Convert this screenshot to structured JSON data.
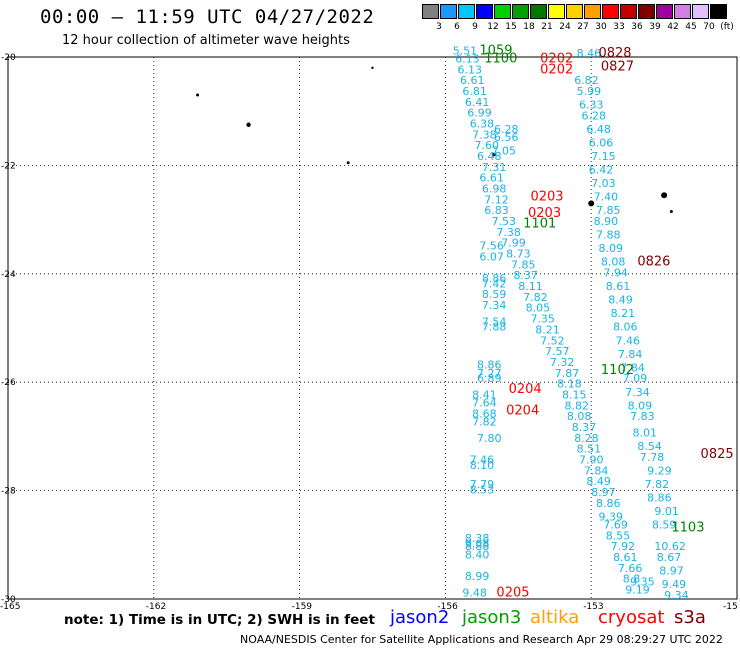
{
  "title": "00:00 – 11:59 UTC 04/27/2022",
  "subtitle": "12 hour collection of altimeter wave heights",
  "legend": {
    "labels": [
      "3",
      "6",
      "9",
      "12",
      "15",
      "18",
      "21",
      "24",
      "27",
      "30",
      "33",
      "36",
      "39",
      "42",
      "45",
      "70",
      "(ft)"
    ],
    "colors": [
      "#808080",
      "#1e96ff",
      "#00c8ff",
      "#0000ff",
      "#00d000",
      "#00a000",
      "#007800",
      "#ffff00",
      "#ffd000",
      "#ffa000",
      "#ff0000",
      "#c00000",
      "#800000",
      "#a000a0",
      "#d080e0",
      "#e0c0ff",
      "#000000"
    ]
  },
  "axes": {
    "lat_labels": [
      "-20",
      "-22",
      "-24",
      "-26",
      "-28",
      "-30"
    ],
    "lon_labels": [
      "-165",
      "-162",
      "-159",
      "-156",
      "-153",
      "-15"
    ]
  },
  "track_values": [
    {
      "t": "5.51",
      "lon": -155.85,
      "lat": -19.95
    },
    {
      "t": "6.13",
      "lon": -155.8,
      "lat": -20.1
    },
    {
      "t": "6.13",
      "lon": -155.75,
      "lat": -20.3
    },
    {
      "t": "6.61",
      "lon": -155.7,
      "lat": -20.5
    },
    {
      "t": "6.81",
      "lon": -155.65,
      "lat": -20.7
    },
    {
      "t": "6.41",
      "lon": -155.6,
      "lat": -20.9
    },
    {
      "t": "6.99",
      "lon": -155.55,
      "lat": -21.1
    },
    {
      "t": "6.38",
      "lon": -155.5,
      "lat": -21.3
    },
    {
      "t": "7.38",
      "lon": -155.45,
      "lat": -21.5
    },
    {
      "t": "7.60",
      "lon": -155.4,
      "lat": -21.7
    },
    {
      "t": "6.48",
      "lon": -155.35,
      "lat": -21.9
    },
    {
      "t": "7.31",
      "lon": -155.25,
      "lat": -22.1
    },
    {
      "t": "6.61",
      "lon": -155.3,
      "lat": -22.3
    },
    {
      "t": "6.98",
      "lon": -155.25,
      "lat": -22.5
    },
    {
      "t": "7.12",
      "lon": -155.2,
      "lat": -22.7
    },
    {
      "t": "6.83",
      "lon": -155.2,
      "lat": -22.9
    },
    {
      "t": "7.53",
      "lon": -155.05,
      "lat": -23.1
    },
    {
      "t": "7.38",
      "lon": -154.95,
      "lat": -23.3
    },
    {
      "t": "7.56",
      "lon": -155.3,
      "lat": -23.55
    },
    {
      "t": "6.07",
      "lon": -155.3,
      "lat": -23.75
    },
    {
      "t": "6.28",
      "lon": -155.0,
      "lat": -21.4
    },
    {
      "t": "6.56",
      "lon": -155.0,
      "lat": -21.55
    },
    {
      "t": "7.05",
      "lon": -155.05,
      "lat": -21.8
    },
    {
      "t": "7.99",
      "lon": -154.85,
      "lat": -23.5
    },
    {
      "t": "8.73",
      "lon": -154.75,
      "lat": -23.7
    },
    {
      "t": "7.85",
      "lon": -154.65,
      "lat": -23.9
    },
    {
      "t": "8.37",
      "lon": -154.6,
      "lat": -24.1
    },
    {
      "t": "8.11",
      "lon": -154.5,
      "lat": -24.3
    },
    {
      "t": "7.82",
      "lon": -154.4,
      "lat": -24.5
    },
    {
      "t": "8.05",
      "lon": -154.35,
      "lat": -24.7
    },
    {
      "t": "7.35",
      "lon": -154.25,
      "lat": -24.9
    },
    {
      "t": "8.21",
      "lon": -154.15,
      "lat": -25.1
    },
    {
      "t": "7.52",
      "lon": -154.05,
      "lat": -25.3
    },
    {
      "t": "7.57",
      "lon": -153.95,
      "lat": -25.5
    },
    {
      "t": "7.32",
      "lon": -153.85,
      "lat": -25.7
    },
    {
      "t": "7.87",
      "lon": -153.75,
      "lat": -25.9
    },
    {
      "t": "8.18",
      "lon": -153.7,
      "lat": -26.1
    },
    {
      "t": "8.15",
      "lon": -153.6,
      "lat": -26.3
    },
    {
      "t": "8.82",
      "lon": -153.55,
      "lat": -26.5
    },
    {
      "t": "8.08",
      "lon": -153.5,
      "lat": -26.7
    },
    {
      "t": "8.37",
      "lon": -153.4,
      "lat": -26.9
    },
    {
      "t": "8.28",
      "lon": -153.35,
      "lat": -27.1
    },
    {
      "t": "8.51",
      "lon": -153.3,
      "lat": -27.3
    },
    {
      "t": "7.90",
      "lon": -153.25,
      "lat": -27.5
    },
    {
      "t": "7.84",
      "lon": -153.15,
      "lat": -27.7
    },
    {
      "t": "8.49",
      "lon": -153.1,
      "lat": -27.9
    },
    {
      "t": "8.97",
      "lon": -153.0,
      "lat": -28.1
    },
    {
      "t": "8.86",
      "lon": -152.9,
      "lat": -28.3
    },
    {
      "t": "7.69",
      "lon": -152.75,
      "lat": -28.7
    },
    {
      "t": "8.55",
      "lon": -152.7,
      "lat": -28.9
    },
    {
      "t": "7.92",
      "lon": -152.6,
      "lat": -29.1
    },
    {
      "t": "8.61",
      "lon": -152.55,
      "lat": -29.3
    },
    {
      "t": "7.66",
      "lon": -152.45,
      "lat": -29.5
    },
    {
      "t": "8.8",
      "lon": -152.35,
      "lat": -29.7
    },
    {
      "t": "9.19",
      "lon": -152.3,
      "lat": -29.9
    },
    {
      "t": "8.46",
      "lon": -153.3,
      "lat": -20.0
    },
    {
      "t": "6.82",
      "lon": -153.35,
      "lat": -20.5
    },
    {
      "t": "5.99",
      "lon": -153.3,
      "lat": -20.7
    },
    {
      "t": "6.33",
      "lon": -153.25,
      "lat": -20.95
    },
    {
      "t": "6.28",
      "lon": -153.2,
      "lat": -21.15
    },
    {
      "t": "6.48",
      "lon": -153.1,
      "lat": -21.4
    },
    {
      "t": "6.06",
      "lon": -153.05,
      "lat": -21.65
    },
    {
      "t": "7.15",
      "lon": -153.0,
      "lat": -21.9
    },
    {
      "t": "6.42",
      "lon": -153.05,
      "lat": -22.15
    },
    {
      "t": "7.03",
      "lon": -153.0,
      "lat": -22.4
    },
    {
      "t": "7.40",
      "lon": -152.95,
      "lat": -22.65
    },
    {
      "t": "7.85",
      "lon": -152.9,
      "lat": -22.9
    },
    {
      "t": "8.90",
      "lon": -152.95,
      "lat": -23.1
    },
    {
      "t": "7.88",
      "lon": -152.9,
      "lat": -23.35
    },
    {
      "t": "8.09",
      "lon": -152.85,
      "lat": -23.6
    },
    {
      "t": "8.08",
      "lon": -152.8,
      "lat": -23.85
    },
    {
      "t": "7.94",
      "lon": -152.75,
      "lat": -24.05
    },
    {
      "t": "8.61",
      "lon": -152.7,
      "lat": -24.3
    },
    {
      "t": "8.49",
      "lon": -152.65,
      "lat": -24.55
    },
    {
      "t": "8.21",
      "lon": -152.6,
      "lat": -24.8
    },
    {
      "t": "8.06",
      "lon": -152.55,
      "lat": -25.05
    },
    {
      "t": "7.46",
      "lon": -152.5,
      "lat": -25.3
    },
    {
      "t": "7.84",
      "lon": -152.45,
      "lat": -25.55
    },
    {
      "t": "7.84",
      "lon": -152.4,
      "lat": -25.8
    },
    {
      "t": "7.09",
      "lon": -152.35,
      "lat": -26.0
    },
    {
      "t": "7.34",
      "lon": -152.3,
      "lat": -26.25
    },
    {
      "t": "8.09",
      "lon": -152.25,
      "lat": -26.5
    },
    {
      "t": "7.83",
      "lon": -152.2,
      "lat": -26.7
    },
    {
      "t": "8.01",
      "lon": -152.15,
      "lat": -27.0
    },
    {
      "t": "8.54",
      "lon": -152.05,
      "lat": -27.25
    },
    {
      "t": "7.78",
      "lon": -152.0,
      "lat": -27.45
    },
    {
      "t": "7.82",
      "lon": -151.9,
      "lat": -27.95
    },
    {
      "t": "8.86",
      "lon": -151.85,
      "lat": -28.2
    },
    {
      "t": "8.59",
      "lon": -151.75,
      "lat": -28.7
    },
    {
      "t": "8.67",
      "lon": -151.65,
      "lat": -29.3
    },
    {
      "t": "8.97",
      "lon": -151.6,
      "lat": -29.55
    },
    {
      "t": "8.86",
      "lon": -155.25,
      "lat": -24.15
    },
    {
      "t": "7.42",
      "lon": -155.25,
      "lat": -24.25
    },
    {
      "t": "8.59",
      "lon": -155.25,
      "lat": -24.45
    },
    {
      "t": "7.34",
      "lon": -155.25,
      "lat": -24.65
    },
    {
      "t": "7.54",
      "lon": -155.25,
      "lat": -24.95
    },
    {
      "t": "7.88",
      "lon": -155.25,
      "lat": -25.05
    },
    {
      "t": "8.86",
      "lon": -155.35,
      "lat": -25.75
    },
    {
      "t": "7.27",
      "lon": -155.35,
      "lat": -25.9
    },
    {
      "t": "6.89",
      "lon": -155.35,
      "lat": -26.0
    },
    {
      "t": "8.41",
      "lon": -155.45,
      "lat": -26.3
    },
    {
      "t": "7.64",
      "lon": -155.45,
      "lat": -26.45
    },
    {
      "t": "8.68",
      "lon": -155.45,
      "lat": -26.65
    },
    {
      "t": "7.82",
      "lon": -155.45,
      "lat": -26.8
    },
    {
      "t": "7.80",
      "lon": -155.35,
      "lat": -27.1
    },
    {
      "t": "7.46",
      "lon": -155.5,
      "lat": -27.5
    },
    {
      "t": "8.10",
      "lon": -155.5,
      "lat": -27.6
    },
    {
      "t": "7.79",
      "lon": -155.5,
      "lat": -27.95
    },
    {
      "t": "8.53",
      "lon": -155.5,
      "lat": -28.05
    },
    {
      "t": "8.38",
      "lon": -155.6,
      "lat": -28.95
    },
    {
      "t": "8.88",
      "lon": -155.6,
      "lat": -29.1
    },
    {
      "t": "8.99",
      "lon": -155.6,
      "lat": -29.65
    }
  ],
  "blue_values": [
    {
      "t": "9.08",
      "lon": -155.6,
      "lat": -29.05
    },
    {
      "t": "8.40",
      "lon": -155.6,
      "lat": -29.25
    },
    {
      "t": "9.29",
      "lon": -151.85,
      "lat": -27.7
    },
    {
      "t": "9.01",
      "lon": -151.7,
      "lat": -28.45
    },
    {
      "t": "9.39",
      "lon": -152.85,
      "lat": -28.55
    },
    {
      "t": "10.62",
      "lon": -151.7,
      "lat": -29.1
    },
    {
      "t": "9.35",
      "lon": -152.2,
      "lat": -29.75
    },
    {
      "t": "9.49",
      "lon": -151.55,
      "lat": -29.8
    },
    {
      "t": "9.34",
      "lon": -151.5,
      "lat": -30.0
    },
    {
      "t": "9.48",
      "lon": -155.65,
      "lat": -29.95
    }
  ],
  "time_labels": [
    {
      "t": "1059",
      "lon": -155.3,
      "lat": -19.95,
      "c": "#008000"
    },
    {
      "t": "1100",
      "lon": -155.2,
      "lat": -20.1,
      "c": "#008000"
    },
    {
      "t": "0828",
      "lon": -152.85,
      "lat": -20.0,
      "c": "#800000"
    },
    {
      "t": "0827",
      "lon": -152.8,
      "lat": -20.25,
      "c": "#800000"
    },
    {
      "t": "0202",
      "lon": -154.05,
      "lat": -20.1,
      "c": "#ff0000"
    },
    {
      "t": "0202",
      "lon": -154.05,
      "lat": -20.3,
      "c": "#ff0000"
    },
    {
      "t": "0203",
      "lon": -154.25,
      "lat": -22.65,
      "c": "#ff0000"
    },
    {
      "t": "0203",
      "lon": -154.3,
      "lat": -22.95,
      "c": "#ff0000"
    },
    {
      "t": "1101",
      "lon": -154.4,
      "lat": -23.15,
      "c": "#008000"
    },
    {
      "t": "0826",
      "lon": -152.05,
      "lat": -23.85,
      "c": "#800000"
    },
    {
      "t": "1102",
      "lon": -152.8,
      "lat": -25.85,
      "c": "#008000"
    },
    {
      "t": "0204",
      "lon": -154.7,
      "lat": -26.2,
      "c": "#ff0000"
    },
    {
      "t": "0204",
      "lon": -154.75,
      "lat": -26.6,
      "c": "#ff0000"
    },
    {
      "t": "0825",
      "lon": -150.75,
      "lat": -27.4,
      "c": "#800000"
    },
    {
      "t": "1103",
      "lon": -151.35,
      "lat": -28.75,
      "c": "#008000"
    },
    {
      "t": "0205",
      "lon": -154.95,
      "lat": -29.95,
      "c": "#ff0000"
    }
  ],
  "note": "note:  1) Time is in UTC;  2) SWH is in feet",
  "satellites": [
    {
      "name": "jason2",
      "color": "#0000ff"
    },
    {
      "name": "jason3",
      "color": "#00a000"
    },
    {
      "name": "altika",
      "color": "#ffa000"
    },
    {
      "name": "cryosat",
      "color": "#ff0000"
    },
    {
      "name": "s3a",
      "color": "#800000"
    }
  ],
  "credit": "NOAA/NESDIS Center for Satellite Applications and Research     Apr 29 08:29:27 UTC 2022"
}
